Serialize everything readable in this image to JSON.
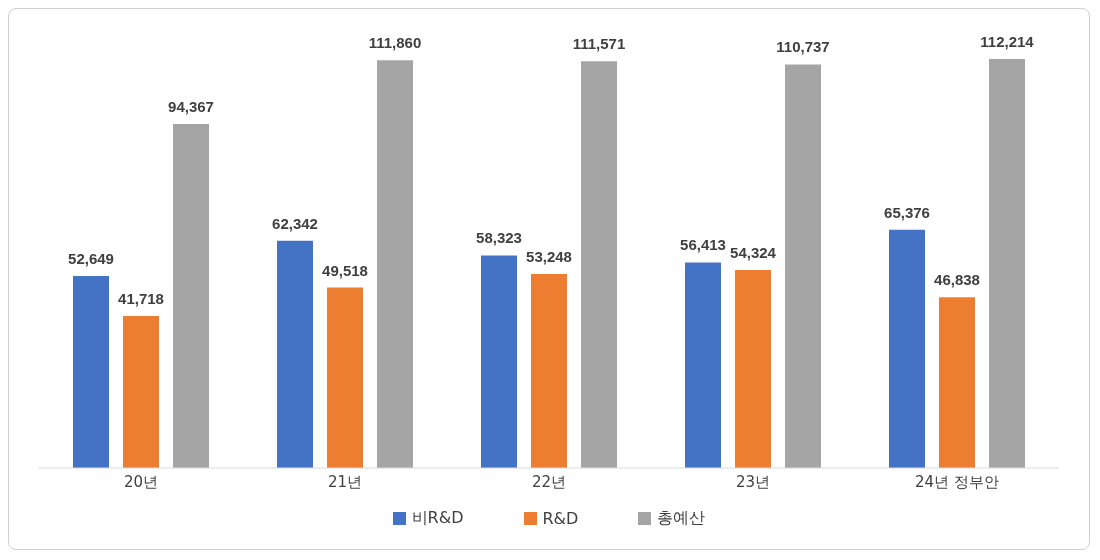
{
  "chart_data": {
    "type": "bar",
    "categories": [
      "20년",
      "21년",
      "22년",
      "23년",
      "24년 정부안"
    ],
    "series": [
      {
        "name": "비R&D",
        "color": "#4472c4",
        "values": [
          52649,
          62342,
          58323,
          56413,
          65376
        ],
        "value_labels": [
          "52,649",
          "62,342",
          "58,323",
          "56,413",
          "65,376"
        ]
      },
      {
        "name": "R&D",
        "color": "#ed7d31",
        "values": [
          41718,
          49518,
          53248,
          54324,
          46838
        ],
        "value_labels": [
          "41,718",
          "49,518",
          "53,248",
          "54,324",
          "46,838"
        ]
      },
      {
        "name": "총예산",
        "color": "#a5a5a5",
        "values": [
          94367,
          111860,
          111571,
          110737,
          112214
        ],
        "value_labels": [
          "94,367",
          "111,860",
          "111,571",
          "110,737",
          "112,214"
        ]
      }
    ],
    "legend": "bottom",
    "grid": false
  }
}
